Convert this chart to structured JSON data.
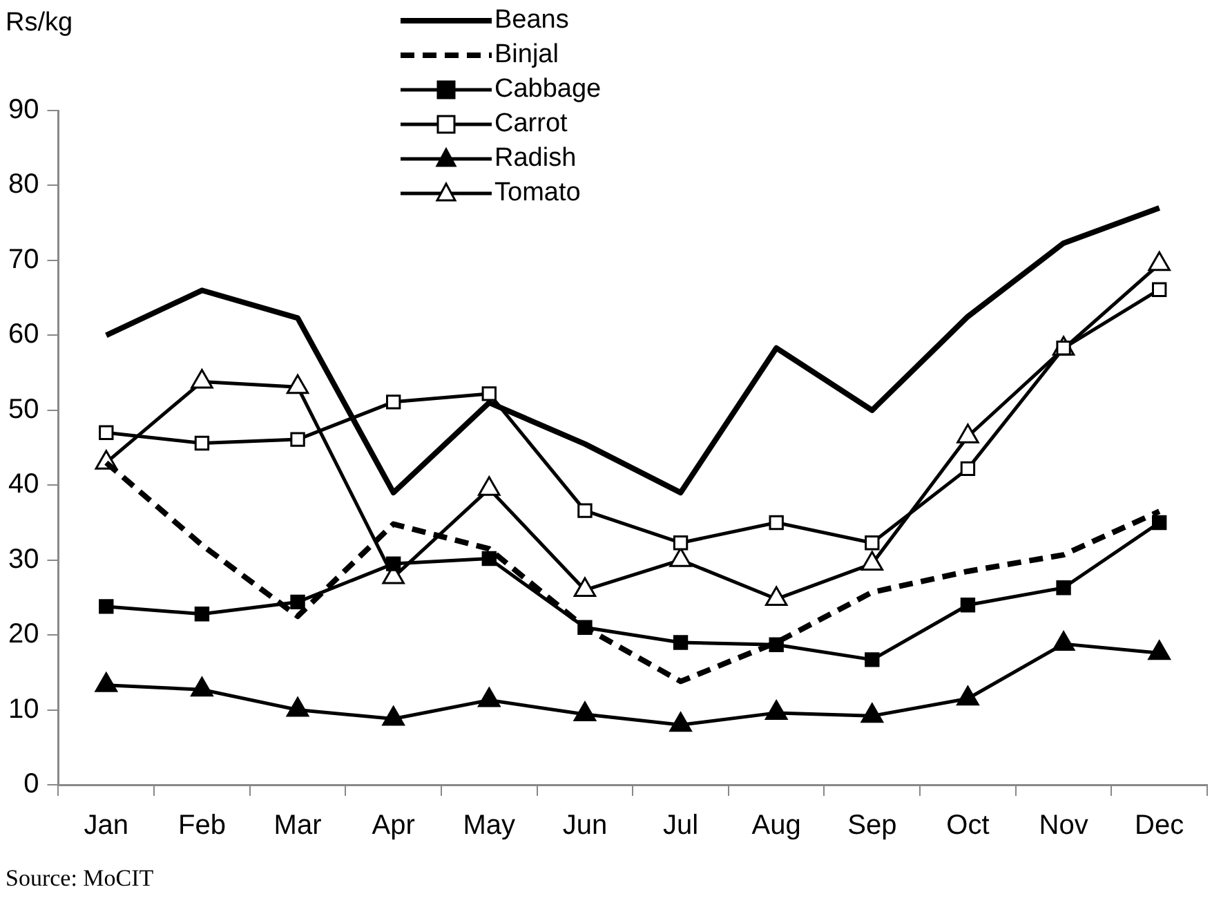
{
  "chart_data": {
    "type": "line",
    "ylabel": "Rs/kg",
    "annotations": [
      "Source: MoCIT"
    ],
    "categories": [
      "Jan",
      "Feb",
      "Mar",
      "Apr",
      "May",
      "Jun",
      "Jul",
      "Aug",
      "Sep",
      "Oct",
      "Nov",
      "Dec"
    ],
    "series": [
      {
        "name": "Beans",
        "color": "#000000",
        "marker": "none",
        "line_style": "solid",
        "values": [
          60,
          66,
          62.3,
          39,
          51,
          45.5,
          39,
          58.3,
          50,
          62.5,
          72.3,
          77
        ]
      },
      {
        "name": "Binjal",
        "color": "#000000",
        "marker": "none",
        "line_style": "dashed",
        "values": [
          43,
          32,
          22.5,
          34.8,
          31.5,
          21,
          13.8,
          19,
          25.7,
          28.5,
          30.7,
          36.5
        ]
      },
      {
        "name": "Cabbage",
        "color": "#000000",
        "marker": "square",
        "line_style": "solid",
        "values": [
          23.8,
          22.8,
          24.4,
          29.5,
          30.2,
          21,
          19,
          18.7,
          16.7,
          24,
          26.3,
          35
        ]
      },
      {
        "name": "Carrot",
        "color": "#000000",
        "marker": "square",
        "line_style": "solid",
        "values": [
          47,
          45.6,
          46.1,
          51.1,
          52.2,
          36.6,
          32.3,
          35,
          32.3,
          42.2,
          58.3,
          66.1
        ]
      },
      {
        "name": "Radish",
        "color": "#000000",
        "marker": "triangle",
        "line_style": "solid",
        "values": [
          13.3,
          12.7,
          10,
          8.8,
          11.3,
          9.4,
          8,
          9.6,
          9.2,
          11.5,
          18.8,
          17.6
        ]
      },
      {
        "name": "Tomato",
        "color": "#000000",
        "marker": "triangle",
        "line_style": "solid",
        "values": [
          43,
          53.8,
          53.1,
          27.7,
          39.5,
          26,
          30,
          24.8,
          29.5,
          46.5,
          58.2,
          69.5
        ]
      }
    ],
    "ylim": [
      0,
      90
    ],
    "yticks": [
      0,
      10,
      20,
      30,
      40,
      50,
      60,
      70,
      80,
      90
    ],
    "grid": false,
    "legend": "top"
  }
}
